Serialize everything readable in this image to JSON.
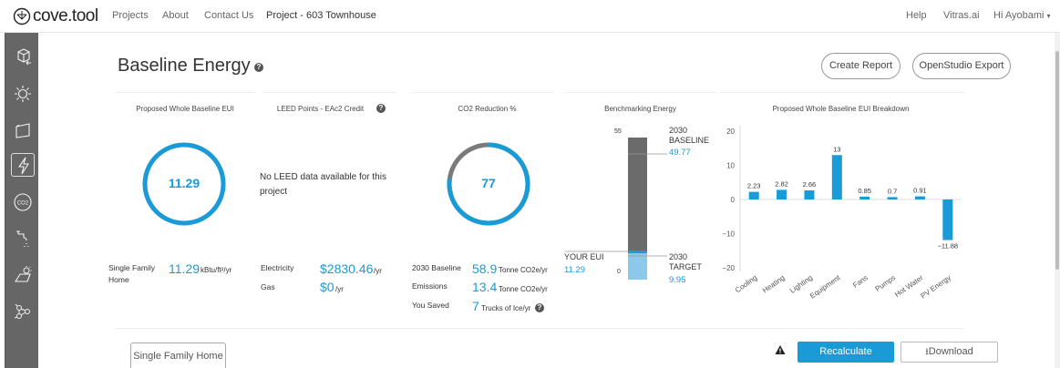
{
  "nav": {
    "logo": "cove.tool",
    "links": [
      "Projects",
      "About",
      "Contact Us",
      "Project - 603 Townhouse"
    ],
    "right": [
      "Help",
      "Vitras.ai",
      "Hi Ayobami"
    ]
  },
  "sidebar": {
    "icons": [
      "cube-arrow-icon",
      "sun-icon",
      "facade-icon",
      "lightning-icon",
      "co2-icon",
      "water-faucet-icon",
      "solar-sun-icon",
      "network-icon"
    ],
    "active": "lightning-icon"
  },
  "header": {
    "title": "Baseline Energy",
    "create_report": "Create Report",
    "openstudio_export": "OpenStudio Export"
  },
  "eui": {
    "title": "Proposed Whole Baseline EUI",
    "value": "11.29",
    "building_type": "Single Family Home",
    "value_text": "11.29",
    "unit": "kBtu/ft²/yr"
  },
  "leed": {
    "title": "LEED Points - EAc2 Credit",
    "message": "No LEED data available for this project",
    "electricity_label": "Electricity",
    "electricity_value": "$2830.46",
    "electricity_unit": "/yr",
    "gas_label": "Gas",
    "gas_value": "$0",
    "gas_unit": "/yr"
  },
  "co2": {
    "title": "CO2 Reduction %",
    "value": "77",
    "percent": 77,
    "baseline_label": "2030 Baseline",
    "baseline_value": "58.9",
    "baseline_unit": "Tonne CO2e/yr",
    "emissions_label": "Emissions",
    "emissions_value": "13.4",
    "emissions_unit": "Tonne CO2e/yr",
    "saved_label": "You Saved",
    "saved_value": "7",
    "saved_unit": "Trucks of Ice/yr"
  },
  "benchmark": {
    "title": "Benchmarking Energy",
    "top_tick": "55",
    "bottom_tick": "0",
    "baseline_label": "2030 BASELINE",
    "baseline_value": "49.77",
    "your_eui_label": "YOUR EUI",
    "your_eui_value": "11.29",
    "target_label": "2030 TARGET",
    "target_value": "9.95"
  },
  "chart_data": {
    "type": "bar",
    "title": "Proposed Whole Baseline EUI Breakdown",
    "categories": [
      "Cooling",
      "Heating",
      "Lighting",
      "Equipment",
      "Fans",
      "Pumps",
      "Hot Water",
      "PV Energy"
    ],
    "values": [
      2.23,
      2.82,
      2.66,
      13,
      0.85,
      0.7,
      0.91,
      -11.88
    ],
    "value_labels": [
      "2.23",
      "2.82",
      "2.66",
      "13",
      "0.85",
      "0.7",
      "0.91",
      "−11.88"
    ],
    "y_ticks": [
      "20",
      "10",
      "0",
      "−10",
      "−20"
    ],
    "ylim": [
      -20,
      20
    ],
    "color": "#1a9ad6"
  },
  "bottom": {
    "tab": "Single Family Home",
    "recalculate": "Recalculate",
    "download": "Download"
  },
  "colors": {
    "accent": "#1a9ad6",
    "ring_grey": "#7a7a7a",
    "bar_grey": "#6b6b6b"
  }
}
